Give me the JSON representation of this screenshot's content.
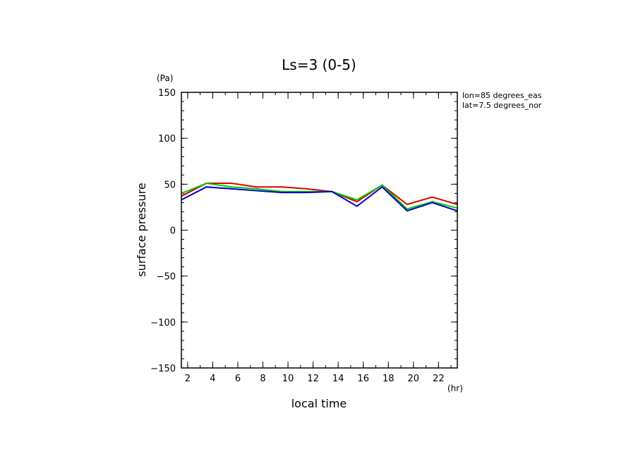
{
  "chart_data": {
    "type": "line",
    "title": "Ls=3 (0-5)",
    "xlabel": "local time",
    "ylabel": "surface pressure",
    "x_unit": "(hr)",
    "y_unit": "(Pa)",
    "annotations": [
      "lon=85 degrees_eas",
      "lat=7.5 degrees_nor"
    ],
    "xlim": [
      1.5,
      23.5
    ],
    "ylim": [
      -150,
      150
    ],
    "x_ticks": [
      2,
      4,
      6,
      8,
      10,
      12,
      14,
      16,
      18,
      20,
      22
    ],
    "y_ticks": [
      -150,
      -100,
      -50,
      0,
      50,
      100,
      150
    ],
    "x": [
      1.5,
      3.5,
      5.5,
      7.5,
      9.5,
      11.5,
      13.5,
      15.5,
      17.5,
      19.5,
      21.5,
      23.5
    ],
    "series": [
      {
        "color": "#dd0000",
        "values": [
          37,
          51,
          51,
          47,
          47,
          45,
          42,
          31,
          49,
          28,
          36,
          28
        ]
      },
      {
        "color": "#00cc00",
        "values": [
          40,
          51,
          47,
          45,
          42,
          42,
          42,
          33,
          49,
          23,
          31,
          24
        ]
      },
      {
        "color": "#0000cc",
        "values": [
          33,
          47,
          45,
          43,
          41,
          41,
          42,
          26,
          47,
          21,
          30,
          21
        ]
      }
    ],
    "grid": false,
    "legend": "none"
  }
}
